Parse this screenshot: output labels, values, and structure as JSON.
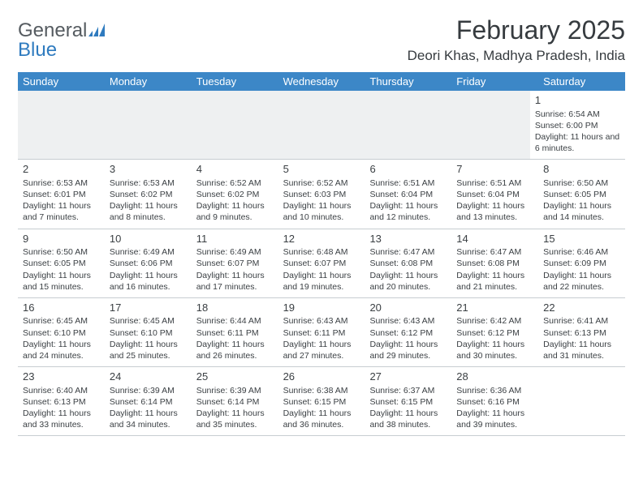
{
  "logo": {
    "text1": "General",
    "text2": "Blue"
  },
  "title": "February 2025",
  "subtitle": "Deori Khas, Madhya Pradesh, India",
  "colors": {
    "header_bg": "#3c87c7",
    "header_text": "#ffffff",
    "grid_line": "#c7cdd1",
    "cell_text": "#3a3f43",
    "logo_gray": "#555b60",
    "logo_blue": "#2f7bbf",
    "blank_bg": "#eef0f1"
  },
  "day_headers": [
    "Sunday",
    "Monday",
    "Tuesday",
    "Wednesday",
    "Thursday",
    "Friday",
    "Saturday"
  ],
  "weeks": [
    [
      null,
      null,
      null,
      null,
      null,
      null,
      {
        "n": "1",
        "sr": "6:54 AM",
        "ss": "6:00 PM",
        "dl": "11 hours and 6 minutes."
      }
    ],
    [
      {
        "n": "2",
        "sr": "6:53 AM",
        "ss": "6:01 PM",
        "dl": "11 hours and 7 minutes."
      },
      {
        "n": "3",
        "sr": "6:53 AM",
        "ss": "6:02 PM",
        "dl": "11 hours and 8 minutes."
      },
      {
        "n": "4",
        "sr": "6:52 AM",
        "ss": "6:02 PM",
        "dl": "11 hours and 9 minutes."
      },
      {
        "n": "5",
        "sr": "6:52 AM",
        "ss": "6:03 PM",
        "dl": "11 hours and 10 minutes."
      },
      {
        "n": "6",
        "sr": "6:51 AM",
        "ss": "6:04 PM",
        "dl": "11 hours and 12 minutes."
      },
      {
        "n": "7",
        "sr": "6:51 AM",
        "ss": "6:04 PM",
        "dl": "11 hours and 13 minutes."
      },
      {
        "n": "8",
        "sr": "6:50 AM",
        "ss": "6:05 PM",
        "dl": "11 hours and 14 minutes."
      }
    ],
    [
      {
        "n": "9",
        "sr": "6:50 AM",
        "ss": "6:05 PM",
        "dl": "11 hours and 15 minutes."
      },
      {
        "n": "10",
        "sr": "6:49 AM",
        "ss": "6:06 PM",
        "dl": "11 hours and 16 minutes."
      },
      {
        "n": "11",
        "sr": "6:49 AM",
        "ss": "6:07 PM",
        "dl": "11 hours and 17 minutes."
      },
      {
        "n": "12",
        "sr": "6:48 AM",
        "ss": "6:07 PM",
        "dl": "11 hours and 19 minutes."
      },
      {
        "n": "13",
        "sr": "6:47 AM",
        "ss": "6:08 PM",
        "dl": "11 hours and 20 minutes."
      },
      {
        "n": "14",
        "sr": "6:47 AM",
        "ss": "6:08 PM",
        "dl": "11 hours and 21 minutes."
      },
      {
        "n": "15",
        "sr": "6:46 AM",
        "ss": "6:09 PM",
        "dl": "11 hours and 22 minutes."
      }
    ],
    [
      {
        "n": "16",
        "sr": "6:45 AM",
        "ss": "6:10 PM",
        "dl": "11 hours and 24 minutes."
      },
      {
        "n": "17",
        "sr": "6:45 AM",
        "ss": "6:10 PM",
        "dl": "11 hours and 25 minutes."
      },
      {
        "n": "18",
        "sr": "6:44 AM",
        "ss": "6:11 PM",
        "dl": "11 hours and 26 minutes."
      },
      {
        "n": "19",
        "sr": "6:43 AM",
        "ss": "6:11 PM",
        "dl": "11 hours and 27 minutes."
      },
      {
        "n": "20",
        "sr": "6:43 AM",
        "ss": "6:12 PM",
        "dl": "11 hours and 29 minutes."
      },
      {
        "n": "21",
        "sr": "6:42 AM",
        "ss": "6:12 PM",
        "dl": "11 hours and 30 minutes."
      },
      {
        "n": "22",
        "sr": "6:41 AM",
        "ss": "6:13 PM",
        "dl": "11 hours and 31 minutes."
      }
    ],
    [
      {
        "n": "23",
        "sr": "6:40 AM",
        "ss": "6:13 PM",
        "dl": "11 hours and 33 minutes."
      },
      {
        "n": "24",
        "sr": "6:39 AM",
        "ss": "6:14 PM",
        "dl": "11 hours and 34 minutes."
      },
      {
        "n": "25",
        "sr": "6:39 AM",
        "ss": "6:14 PM",
        "dl": "11 hours and 35 minutes."
      },
      {
        "n": "26",
        "sr": "6:38 AM",
        "ss": "6:15 PM",
        "dl": "11 hours and 36 minutes."
      },
      {
        "n": "27",
        "sr": "6:37 AM",
        "ss": "6:15 PM",
        "dl": "11 hours and 38 minutes."
      },
      {
        "n": "28",
        "sr": "6:36 AM",
        "ss": "6:16 PM",
        "dl": "11 hours and 39 minutes."
      },
      null
    ]
  ],
  "labels": {
    "sunrise": "Sunrise:",
    "sunset": "Sunset:",
    "daylight": "Daylight:"
  }
}
